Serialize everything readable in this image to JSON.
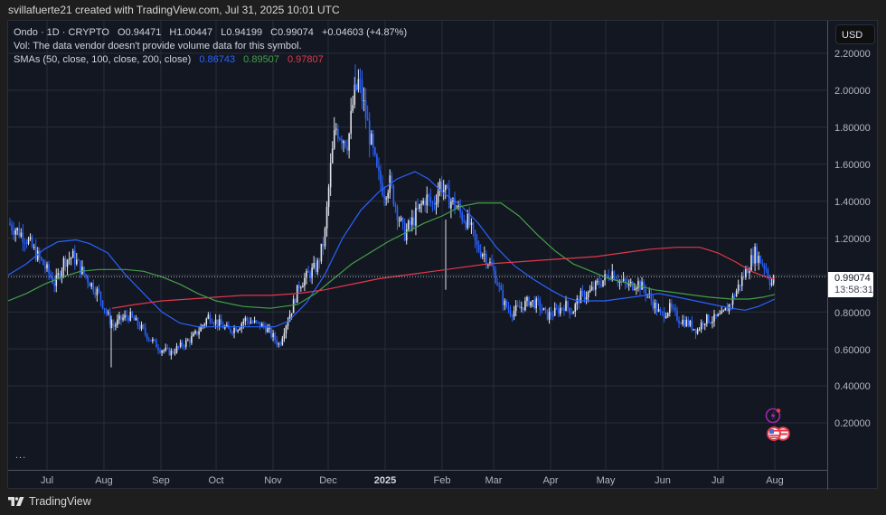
{
  "byline": "svillafuerte21 created with TradingView.com, Jul 31, 2025 10:01 UTC",
  "legend": {
    "symbol_line": "Ondo · 1D · CRYPTO",
    "open": "O0.94471",
    "high": "H1.00447",
    "low": "L0.94199",
    "close": "C0.99074",
    "change": "+0.04603 (+4.87%)",
    "volume_note": "Vol: The data vendor doesn't provide volume data for this symbol.",
    "sma_label": "SMAs (50, close, 100, close, 200, close)",
    "sma50": "0.86743",
    "sma100": "0.89507",
    "sma200": "0.97807"
  },
  "colors": {
    "up": "#e0e3eb",
    "down": "#2962ff",
    "sma50": "#2962ff",
    "sma100": "#43a047",
    "sma200": "#e5374b",
    "background": "#131722",
    "grid": "#2a2e39"
  },
  "price_axis": {
    "currency": "USD",
    "labels": [
      "2.20000",
      "2.00000",
      "1.80000",
      "1.60000",
      "1.40000",
      "1.20000",
      "0.80000",
      "0.60000",
      "0.40000",
      "0.20000"
    ],
    "last_price": "0.99074",
    "countdown": "13:58:31"
  },
  "time_axis": {
    "labels": [
      "Jul",
      "Aug",
      "Sep",
      "Oct",
      "Nov",
      "Dec",
      "2025",
      "Feb",
      "Mar",
      "Apr",
      "May",
      "Jun",
      "Jul",
      "Aug"
    ]
  },
  "collapse_dots": "...",
  "footer": {
    "brand": "TradingView"
  },
  "chart_data": {
    "type": "candlestick",
    "title": "Ondo · 1D · CRYPTO",
    "xlabel": "",
    "ylabel": "USD",
    "ylim": [
      0.1,
      2.3
    ],
    "grid": true,
    "x_ticks": [
      "Jul 2024",
      "Aug",
      "Sep",
      "Oct",
      "Nov",
      "Dec",
      "2025",
      "Feb",
      "Mar",
      "Apr",
      "May",
      "Jun",
      "Jul",
      "Aug"
    ],
    "y_ticks": [
      0.2,
      0.4,
      0.6,
      0.8,
      1.0,
      1.2,
      1.4,
      1.6,
      1.8,
      2.0,
      2.2
    ],
    "ohlc_last": {
      "open": 0.94471,
      "high": 1.00447,
      "low": 0.94199,
      "close": 0.99074,
      "change": 0.04603,
      "change_pct": 4.87
    },
    "monthly_approx_close": {
      "categories": [
        "Jun 2024",
        "Jul",
        "Aug",
        "Sep",
        "Oct",
        "Nov",
        "Dec",
        "Jan 2025",
        "Feb",
        "Mar",
        "Apr",
        "May",
        "Jun",
        "Jul",
        "Jul 31"
      ],
      "values": [
        1.25,
        1.05,
        0.8,
        0.58,
        0.72,
        0.62,
        1.8,
        1.3,
        1.35,
        0.85,
        0.85,
        0.9,
        0.75,
        1.1,
        0.99
      ]
    },
    "peak": {
      "date": "mid Dec 2024",
      "high": 2.14
    },
    "series": [
      {
        "name": "SMA 50",
        "color": "#2962ff",
        "last": 0.86743
      },
      {
        "name": "SMA 100",
        "color": "#43a047",
        "last": 0.89507
      },
      {
        "name": "SMA 200",
        "color": "#e5374b",
        "last": 0.97807
      }
    ],
    "legend_position": "top-left"
  }
}
